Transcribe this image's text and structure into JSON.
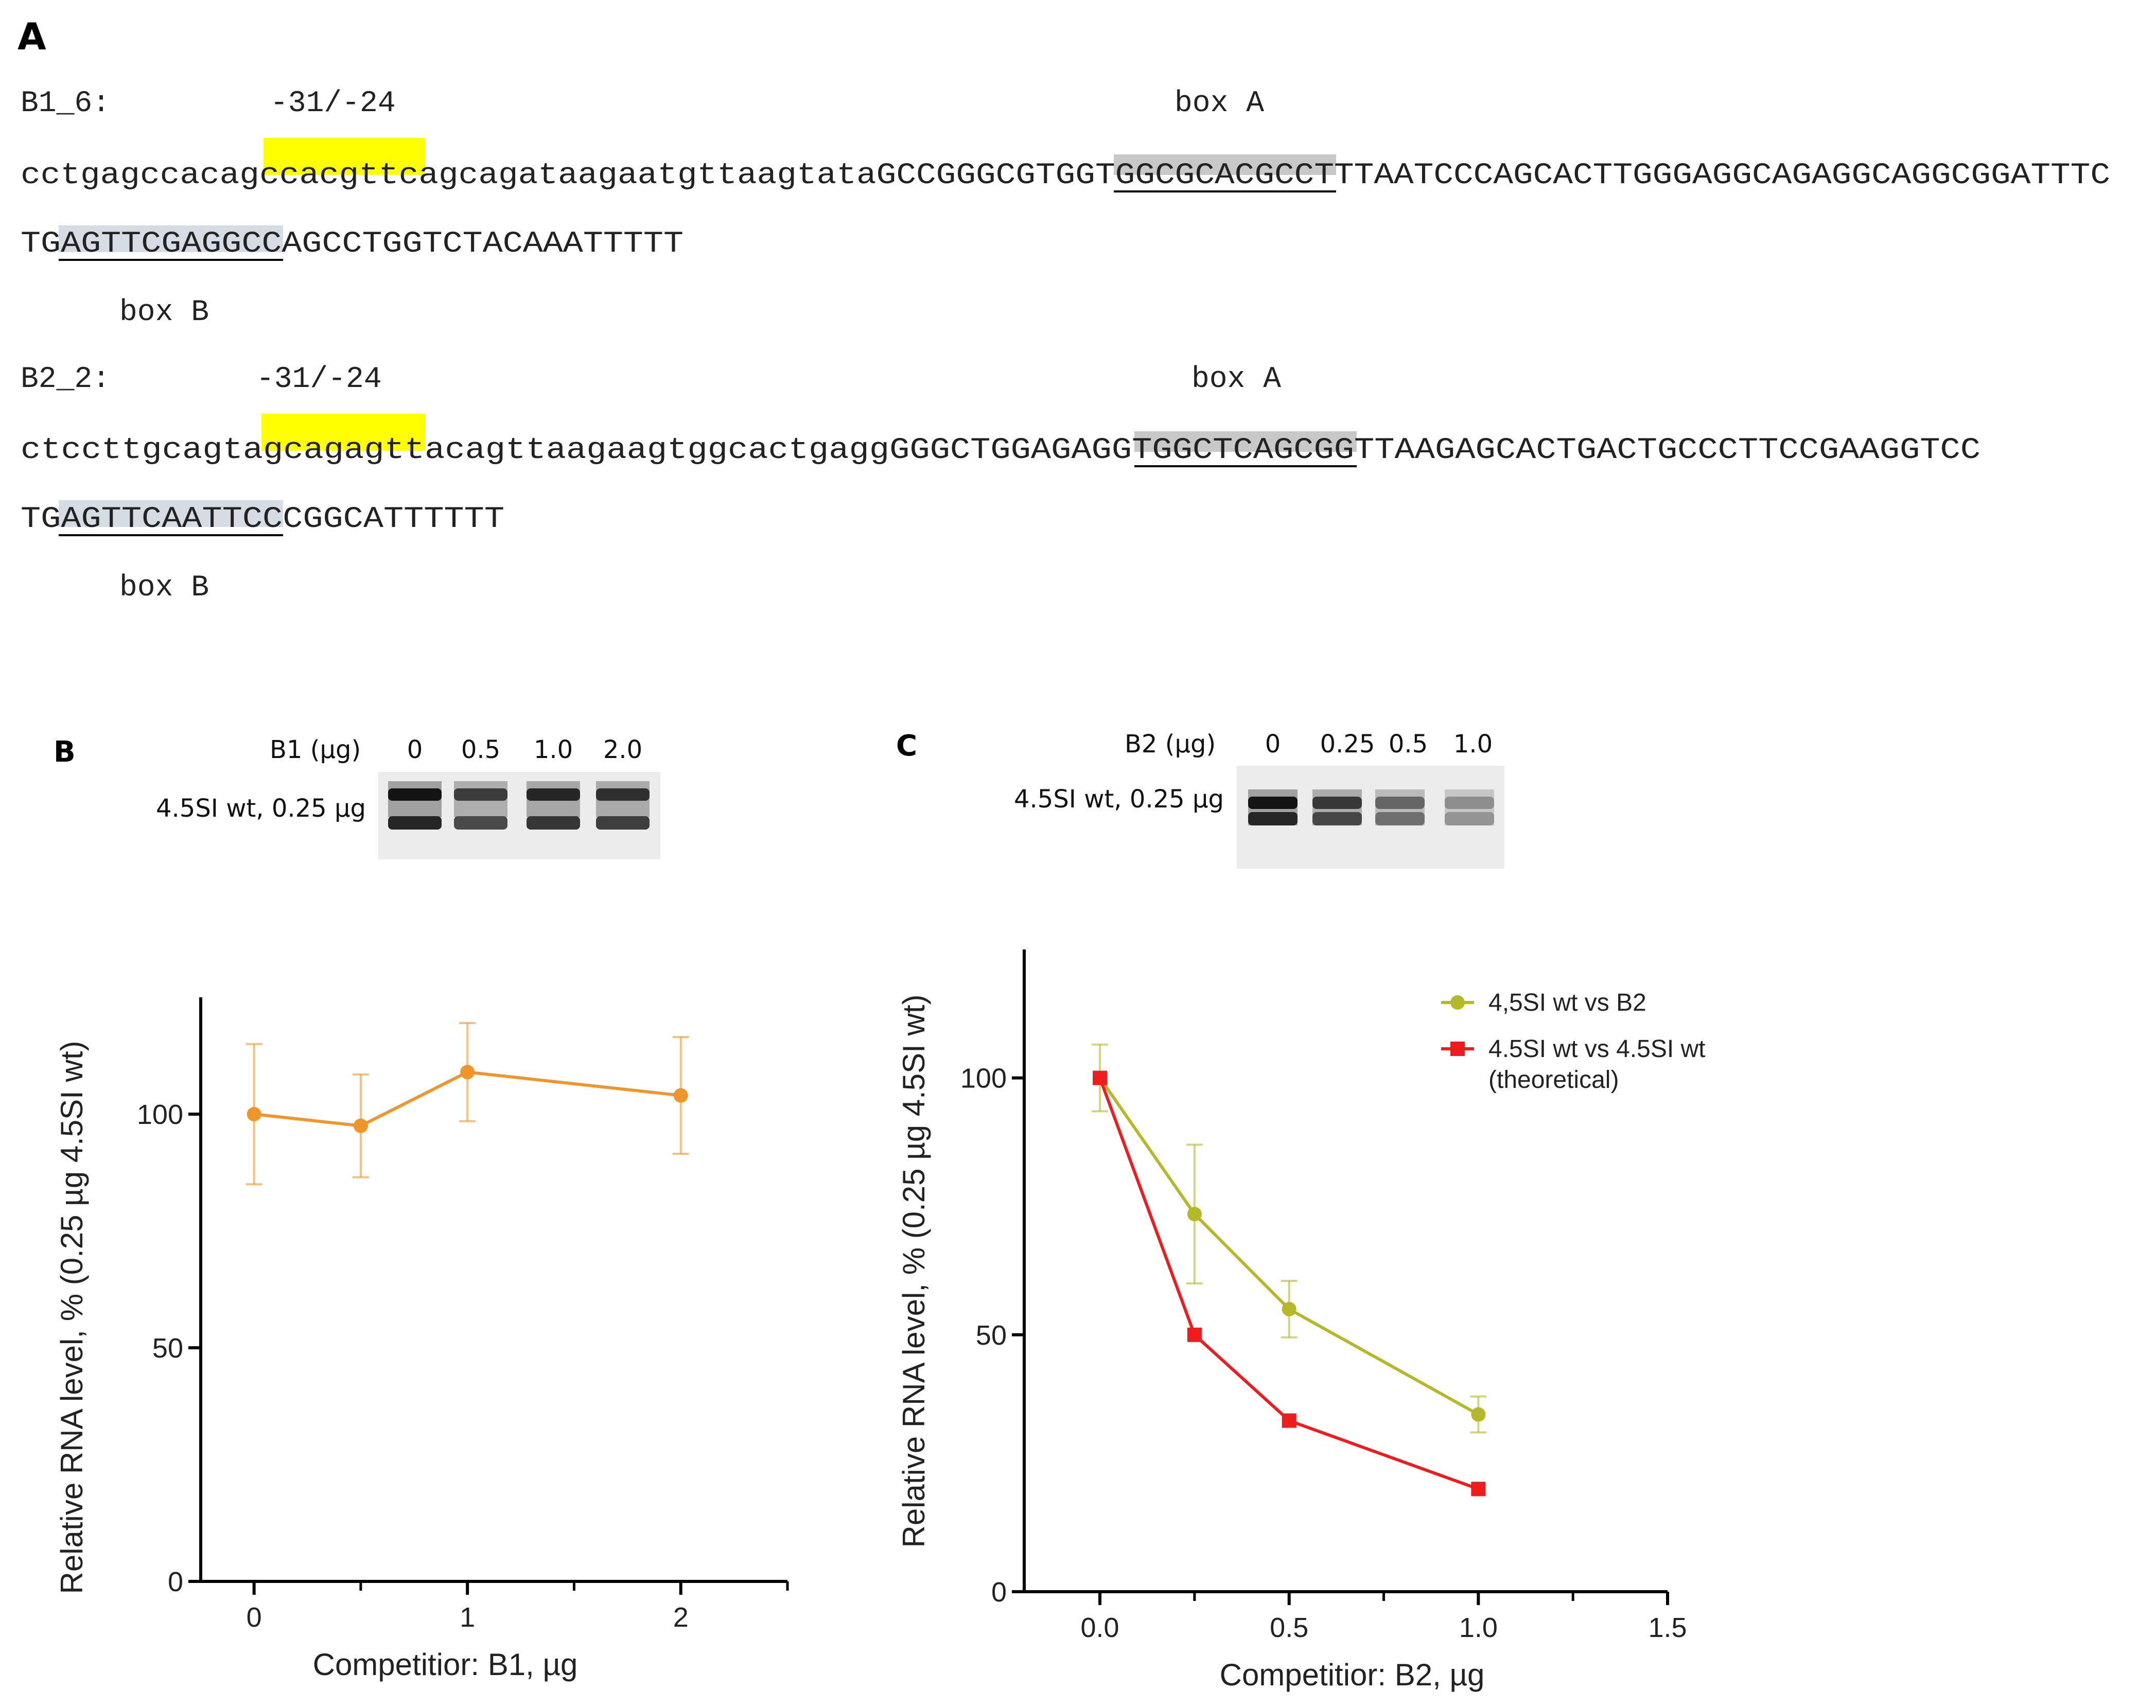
{
  "panels": {
    "a": "A",
    "b": "B",
    "c": "C"
  },
  "sequences": [
    {
      "name": "B1_6:",
      "tata_label": "-31/-24",
      "box_a_label": "box A",
      "box_b_label": "box B",
      "line1": {
        "pre": "cctgagccacag",
        "tata": "ccacgttc",
        "mid": "agcagataagaatgttaagtataGCCGGGCGTGG",
        "box_a": "TGGCGCACGCC",
        "post": "TTTAATCCCAGCACTTGGGAGGCAGAGGCAGGCGGATTTC"
      },
      "line2": {
        "pre": "TG",
        "box_b": "AGTTCGAGGCC",
        "post": "AGCCTGGTCTACAAATTTTT"
      }
    },
    {
      "name": "B2_2:",
      "tata_label": "-31/-24",
      "box_a_label": "box A",
      "box_b_label": "box B",
      "line1": {
        "pre": "ctccttgcagta",
        "tata": "gcagagtt",
        "mid": "acagttaagaagtggcactgaggGGGCTGGAGAGG",
        "box_a": "TGGCTCAGCGG",
        "post": "TTAAGAGCACTGACTGCCCTTCCGAAGGTCC"
      },
      "line2": {
        "pre": "TG",
        "box_b": "AGTTCAATTCC",
        "post": "CGGCATTTTTT"
      }
    }
  ],
  "colors": {
    "tata_highlight": "#ffff00",
    "box_a_highlight": "#c8c8c8",
    "box_b_highlight": "#d6dce4",
    "b1_series": "#f0952a",
    "b2_series": "#b5b829",
    "theoretical_series": "#ee1c1c"
  },
  "gels": {
    "b": {
      "header_label": "B1 (µg)",
      "row_label": "4.5SI wt, 0.25 µg",
      "lanes": [
        "0",
        "0.5",
        "1.0",
        "2.0"
      ],
      "intensities": [
        1.0,
        0.78,
        0.9,
        0.85
      ]
    },
    "c": {
      "header_label": "B2 (µg)",
      "row_label": "4.5SI wt, 0.25 µg",
      "lanes": [
        "0",
        "0.25",
        "0.5",
        "1.0"
      ],
      "intensities": [
        1.0,
        0.8,
        0.55,
        0.32
      ]
    }
  },
  "chart_data": [
    {
      "type": "line",
      "title": "",
      "xlabel": "Competitior: B1, µg",
      "ylabel": "Relative RNA level, % (0.25 µg 4.5SI wt)",
      "xlim": [
        -0.25,
        2.5
      ],
      "ylim": [
        0,
        125
      ],
      "xticks": [
        0,
        1,
        2
      ],
      "xtick_labels": [
        "0",
        "1",
        "2"
      ],
      "xminor": [
        0.5,
        1.5,
        2.5
      ],
      "yticks": [
        0,
        50,
        100
      ],
      "ytick_labels": [
        "0",
        "50",
        "100"
      ],
      "series": [
        {
          "name": "B1",
          "x": [
            0,
            0.5,
            1,
            2
          ],
          "y": [
            100,
            97.5,
            109,
            104
          ],
          "err": [
            15,
            11,
            10.5,
            12.5
          ],
          "marker": "circle"
        }
      ]
    },
    {
      "type": "line",
      "title": "",
      "xlabel": "Competitior: B2, µg",
      "ylabel": "Relative RNA level, % (0.25 µg 4.5SI wt)",
      "xlim": [
        -0.2,
        1.5
      ],
      "ylim": [
        0,
        125
      ],
      "xticks": [
        0,
        0.5,
        1,
        1.5
      ],
      "xtick_labels": [
        "0.0",
        "0.5",
        "1.0",
        "1.5"
      ],
      "xminor": [
        0.25,
        0.75,
        1.25
      ],
      "yticks": [
        0,
        50,
        100
      ],
      "ytick_labels": [
        "0",
        "50",
        "100"
      ],
      "legend_position": "top-right",
      "series": [
        {
          "name": "4,5SI wt vs B2",
          "x": [
            0,
            0.25,
            0.5,
            1
          ],
          "y": [
            100,
            73.5,
            55,
            34.5
          ],
          "err": [
            6.5,
            13.5,
            5.5,
            3.5
          ],
          "marker": "circle"
        },
        {
          "name": "4.5SI wt vs 4.5SI wt (theoretical)",
          "legend_lines": [
            "4.5SI wt vs 4.5SI wt",
            "(theoretical)"
          ],
          "x": [
            0,
            0.25,
            0.5,
            1
          ],
          "y": [
            100,
            50,
            33.3,
            20
          ],
          "err": [
            0,
            0,
            0,
            0
          ],
          "marker": "square"
        }
      ]
    }
  ]
}
